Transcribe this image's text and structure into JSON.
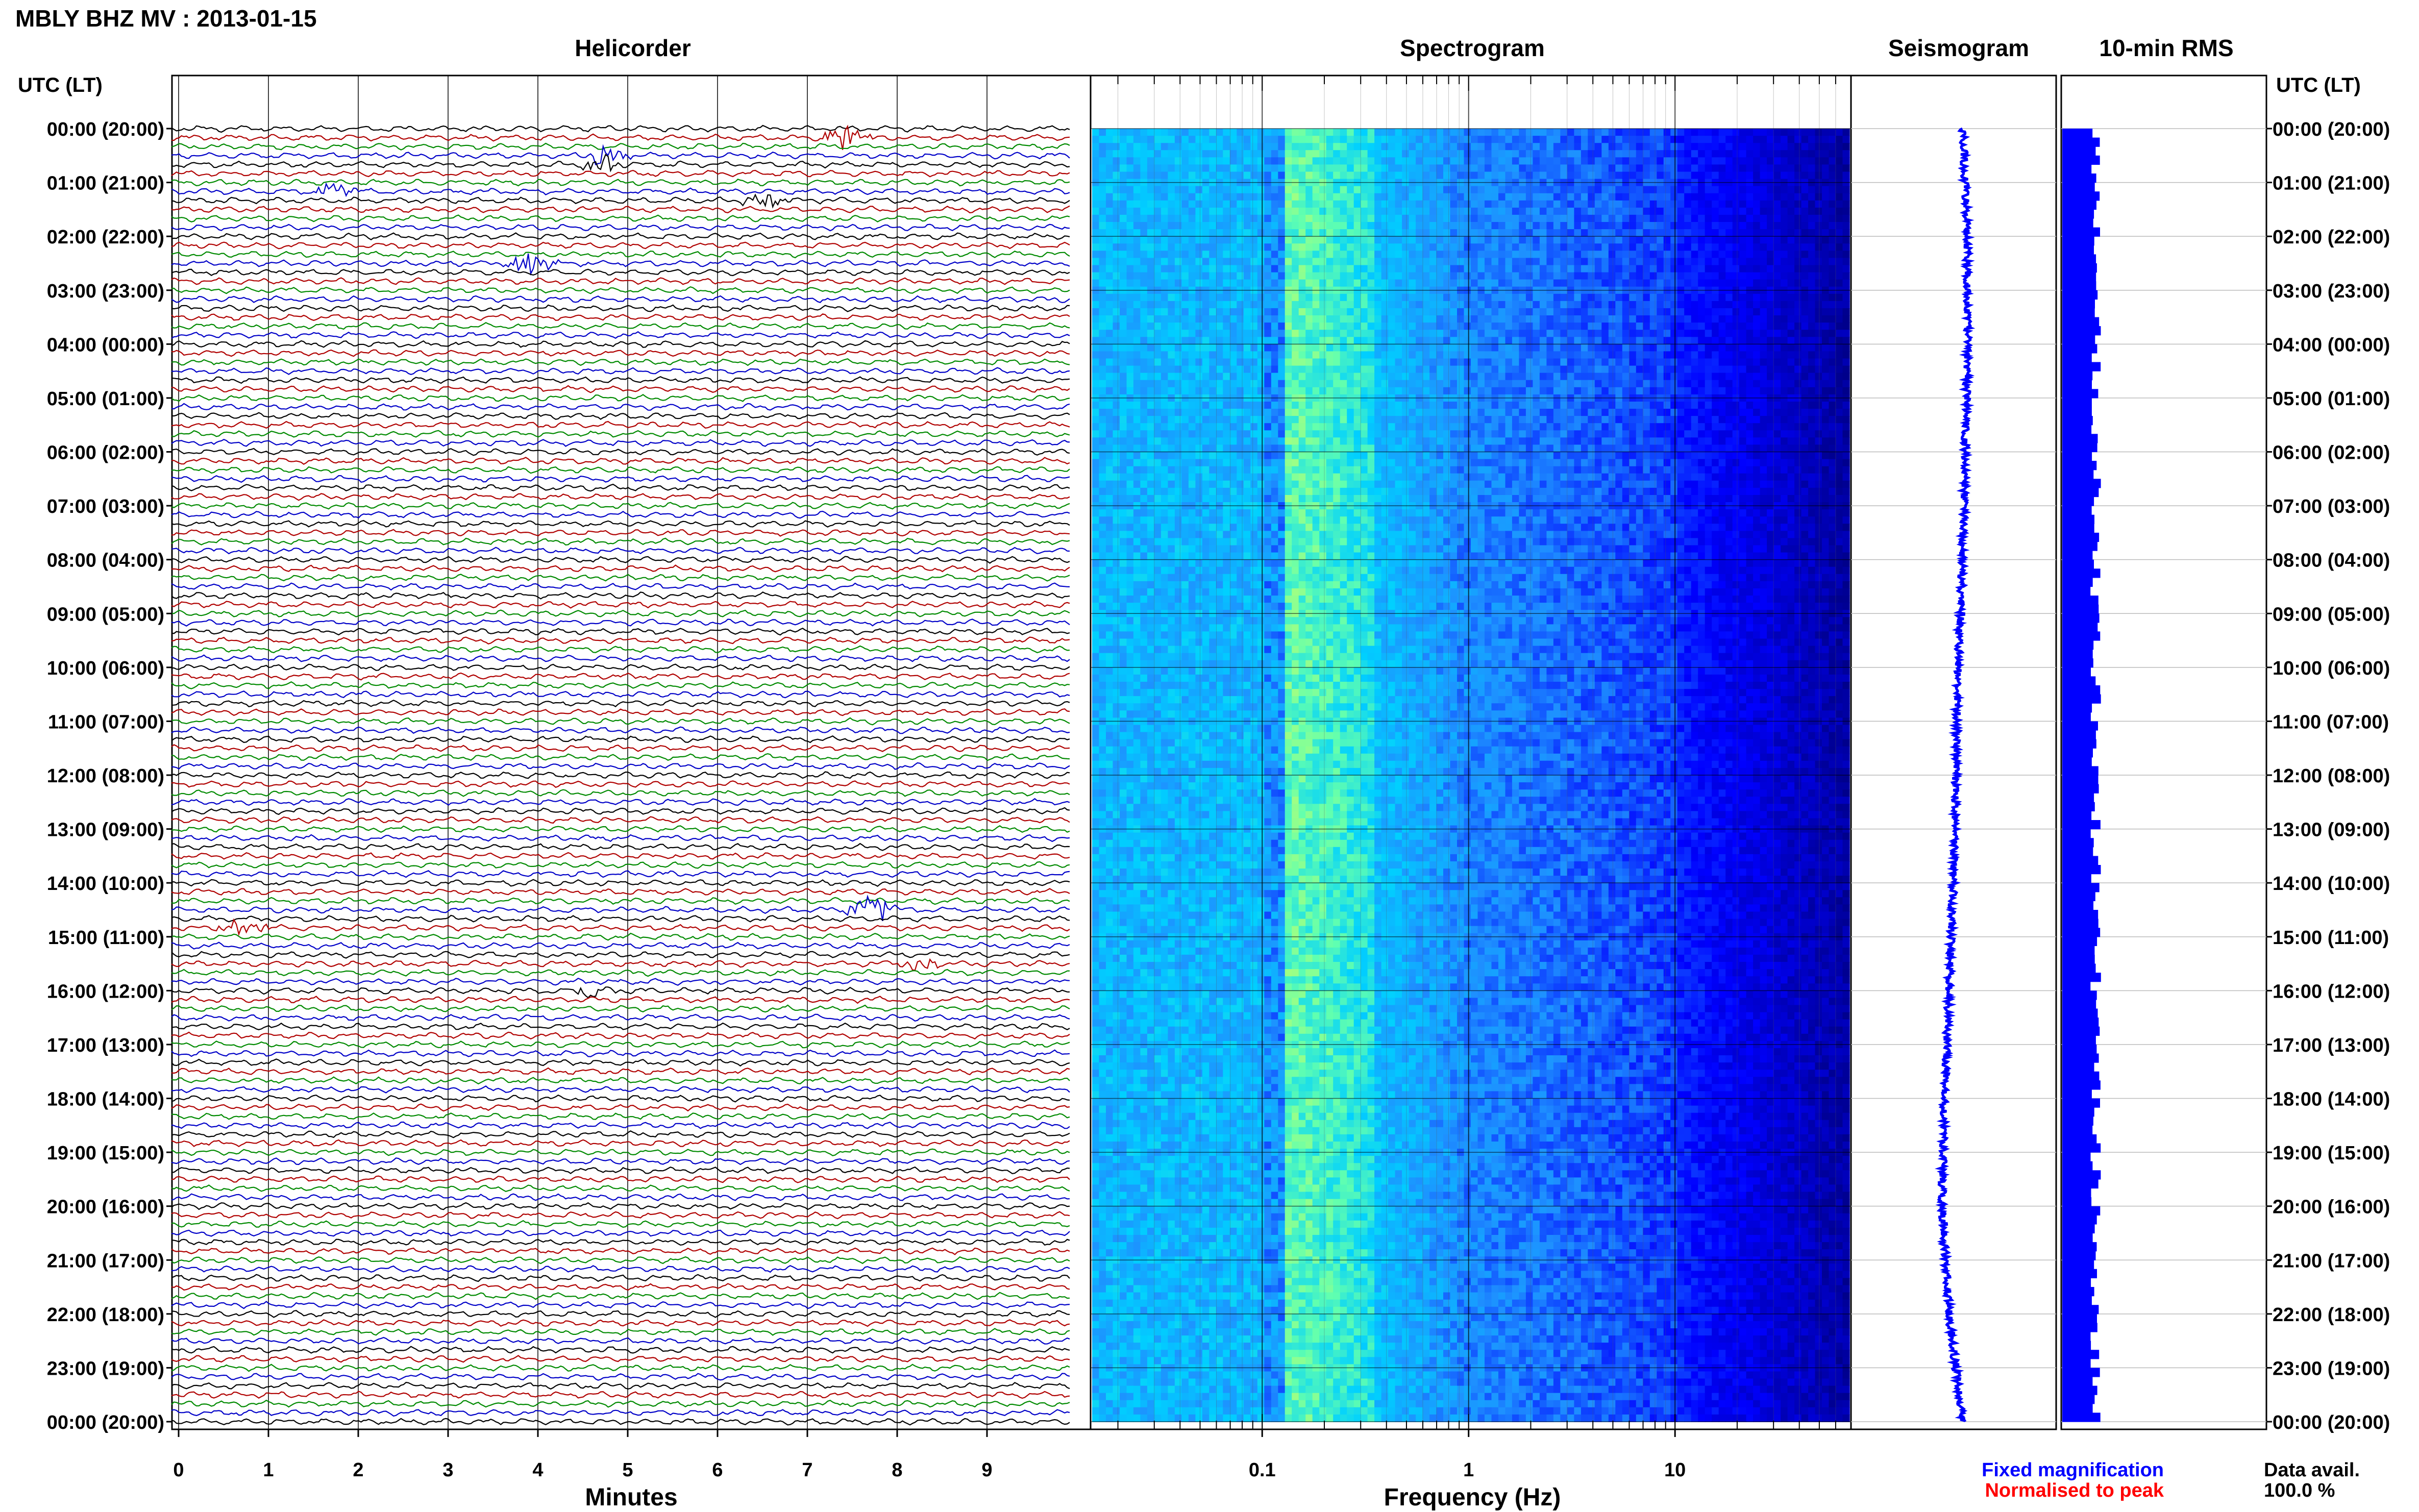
{
  "header": {
    "title": "MBLY BHZ MV : 2013-01-15"
  },
  "panels": {
    "helicorder": "Helicorder",
    "spectrogram": "Spectrogram",
    "seismogram": "Seismogram",
    "rms": "10-min RMS"
  },
  "axes": {
    "utc_label_left": "UTC (LT)",
    "utc_label_right": "UTC (LT)",
    "minutes_label": "Minutes",
    "frequency_label": "Frequency (Hz)",
    "time_ticks": [
      "00:00 (20:00)",
      "01:00 (21:00)",
      "02:00 (22:00)",
      "03:00 (23:00)",
      "04:00 (00:00)",
      "05:00 (01:00)",
      "06:00 (02:00)",
      "07:00 (03:00)",
      "08:00 (04:00)",
      "09:00 (05:00)",
      "10:00 (06:00)",
      "11:00 (07:00)",
      "12:00 (08:00)",
      "13:00 (09:00)",
      "14:00 (10:00)",
      "15:00 (11:00)",
      "16:00 (12:00)",
      "17:00 (13:00)",
      "18:00 (14:00)",
      "19:00 (15:00)",
      "20:00 (16:00)",
      "21:00 (17:00)",
      "22:00 (18:00)",
      "23:00 (19:00)",
      "00:00 (20:00)"
    ],
    "minute_ticks": [
      "0",
      "1",
      "2",
      "3",
      "4",
      "5",
      "6",
      "7",
      "8",
      "9"
    ],
    "frequency_ticks": [
      "0.1",
      "1",
      "10"
    ]
  },
  "legend": {
    "fixed": "Fixed magnification",
    "normalised": "Normalised to peak",
    "avail_label": "Data avail.",
    "avail_value": "100.0 %"
  },
  "colors": {
    "trace_black": "#000000",
    "trace_red": "#b00000",
    "trace_green": "#008a00",
    "trace_blue": "#0000c8",
    "rms_blue": "#0000ff",
    "legend_blue": "#0000ff",
    "legend_red": "#ff0000"
  },
  "chart_data": {
    "type": "heatmap",
    "title": "MBLY BHZ MV : 2013-01-15",
    "helicorder": {
      "x_unit": "minutes",
      "xlim": [
        0,
        10
      ],
      "lines_per_hour": 6,
      "hours": 24,
      "trace_color_cycle": [
        "black",
        "red",
        "green",
        "blue"
      ],
      "events": [
        {
          "hour": 0.1,
          "minute": 7.5,
          "amp": 3.0
        },
        {
          "hour": 0.6,
          "minute": 4.8,
          "amp": 1.6
        },
        {
          "hour": 1.1,
          "minute": 1.8,
          "amp": 1.4
        },
        {
          "hour": 1.3,
          "minute": 6.6,
          "amp": 1.5
        },
        {
          "hour": 2.5,
          "minute": 4.0,
          "amp": 2.2
        },
        {
          "hour": 14.5,
          "minute": 7.8,
          "amp": 3.2
        },
        {
          "hour": 14.8,
          "minute": 0.8,
          "amp": 1.8
        },
        {
          "hour": 15.5,
          "minute": 8.3,
          "amp": 2.0
        },
        {
          "hour": 16.0,
          "minute": 4.7,
          "amp": 1.3
        }
      ]
    },
    "spectrogram": {
      "x_unit": "Hz",
      "x_scale": "log",
      "xlim": [
        0.015,
        70
      ],
      "colormap": [
        "#00008b",
        "#0000ff",
        "#1e90ff",
        "#00d0ff",
        "#60ffb0",
        "#ffff40"
      ],
      "peak_band_hz": [
        0.14,
        0.35
      ],
      "hours": 24
    },
    "seismogram": {
      "type": "line",
      "description_values": "trace offset vs hour",
      "hours": [
        0,
        2,
        4,
        6,
        8,
        10,
        12,
        14,
        16,
        18,
        20,
        22,
        24
      ],
      "offset": [
        0.2,
        0.3,
        0.3,
        0.25,
        0.2,
        0.1,
        0.05,
        0.0,
        -0.1,
        -0.2,
        -0.25,
        -0.1,
        0.2
      ]
    },
    "rms": {
      "type": "bar",
      "bins_per_hour": 6,
      "hours": 24,
      "relative_level_range": [
        0.55,
        0.95
      ]
    }
  }
}
